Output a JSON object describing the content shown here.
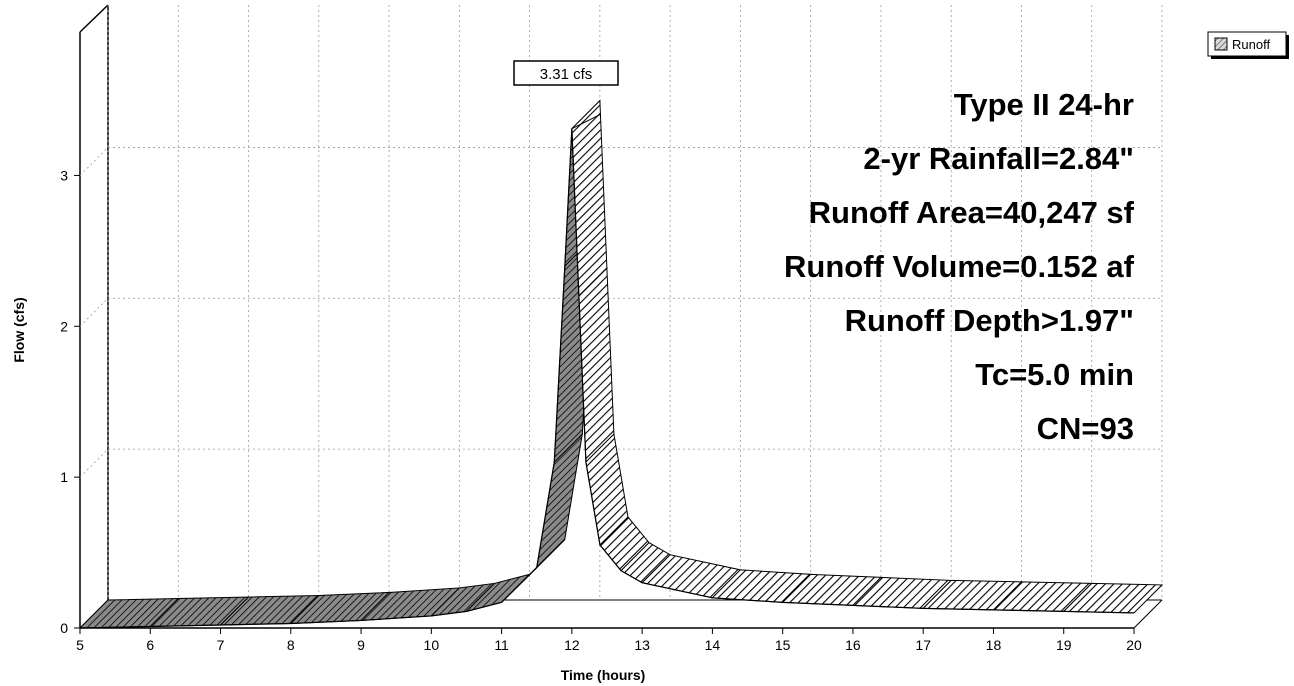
{
  "chart_data": {
    "type": "area",
    "style": "3d",
    "xlabel": "Time  (hours)",
    "ylabel": "Flow  (cfs)",
    "xlim": [
      5,
      20
    ],
    "ylim": [
      0,
      3.5
    ],
    "x_ticks": [
      5,
      6,
      7,
      8,
      9,
      10,
      11,
      12,
      13,
      14,
      15,
      16,
      17,
      18,
      19,
      20
    ],
    "y_ticks": [
      0,
      1,
      2,
      3
    ],
    "grid": true,
    "legend_position": "top-right",
    "series": [
      {
        "name": "Runoff",
        "color": "#c8c8c8",
        "x": [
          5,
          6,
          7,
          8,
          9,
          10,
          10.5,
          11,
          11.5,
          11.75,
          11.9,
          12.0,
          12.1,
          12.2,
          12.4,
          12.7,
          13,
          14,
          15,
          16,
          17,
          18,
          19,
          20
        ],
        "y": [
          0.0,
          0.01,
          0.02,
          0.03,
          0.05,
          0.08,
          0.11,
          0.17,
          0.4,
          1.1,
          2.4,
          3.31,
          2.2,
          1.1,
          0.55,
          0.38,
          0.3,
          0.2,
          0.17,
          0.15,
          0.13,
          0.12,
          0.11,
          0.1
        ]
      }
    ],
    "peak_label": "3.31 cfs",
    "peak_x": 12.0,
    "peak_y": 3.31,
    "annotations": [
      "Type II 24-hr",
      "2-yr Rainfall=2.84\"",
      "Runoff Area=40,247 sf",
      "Runoff Volume=0.152 af",
      "Runoff Depth>1.97\"",
      "Tc=5.0 min",
      "CN=93"
    ]
  }
}
